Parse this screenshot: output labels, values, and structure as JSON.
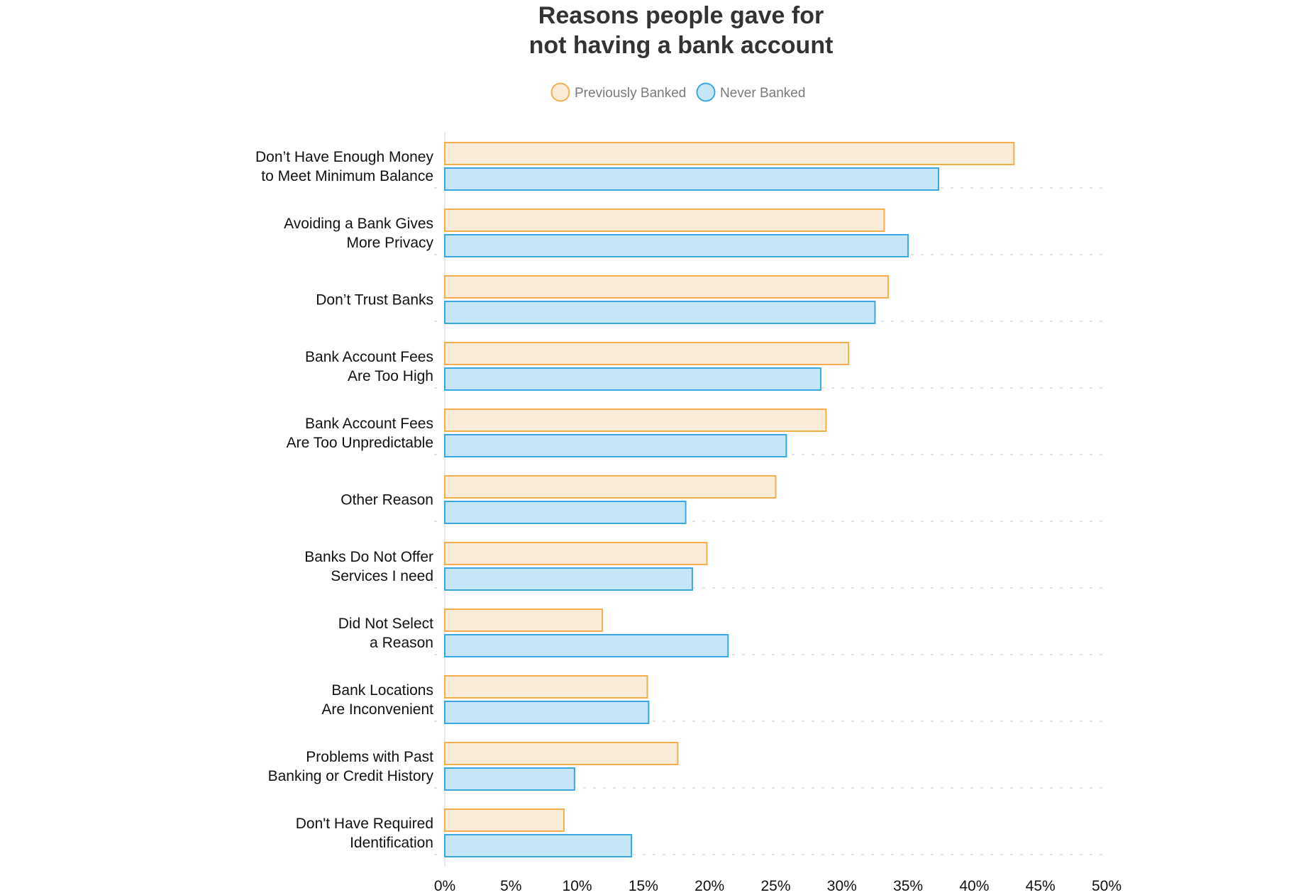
{
  "chart_data": {
    "type": "bar",
    "orientation": "horizontal",
    "title": [
      "Reasons people gave for",
      "not having a bank account"
    ],
    "categories": [
      [
        "Don’t Have Enough Money",
        "to Meet Minimum Balance"
      ],
      [
        "Avoiding a Bank Gives",
        "More Privacy"
      ],
      [
        "Don’t Trust Banks"
      ],
      [
        "Bank Account Fees",
        "Are Too High"
      ],
      [
        "Bank Account Fees",
        "Are Too Unpredictable"
      ],
      [
        "Other Reason"
      ],
      [
        "Banks Do Not Offer",
        "Services I need"
      ],
      [
        "Did Not Select",
        "a Reason"
      ],
      [
        "Bank Locations",
        "Are Inconvenient"
      ],
      [
        "Problems with Past",
        "Banking or Credit History"
      ],
      [
        "Don't Have Required",
        "Identification"
      ]
    ],
    "series": [
      {
        "name": "Previously Banked",
        "fill": "#fbebd9",
        "stroke": "#f5ad4e",
        "values": [
          43.0,
          33.2,
          33.5,
          30.5,
          28.8,
          25.0,
          19.8,
          11.9,
          15.3,
          17.6,
          9.0
        ]
      },
      {
        "name": "Never Banked",
        "fill": "#c6e6f8",
        "stroke": "#3aa8e0",
        "values": [
          37.3,
          35.0,
          32.5,
          28.4,
          25.8,
          18.2,
          18.7,
          21.4,
          15.4,
          9.8,
          14.1
        ]
      }
    ],
    "xlim": [
      0,
      50
    ],
    "xticks": [
      "0%",
      "5%",
      "10%",
      "15%",
      "20%",
      "25%",
      "30%",
      "35%",
      "40%",
      "45%",
      "50%"
    ],
    "xlabel": "",
    "ylabel": "",
    "legend_position": "top-center",
    "grid": "dashed horizontal separators between categories"
  }
}
